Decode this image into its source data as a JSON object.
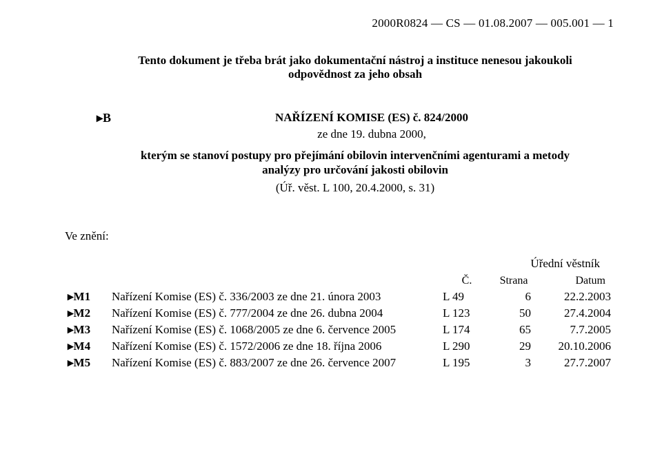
{
  "header": {
    "doc_ref": "2000R0824 — CS — 01.08.2007 — 005.001 — 1"
  },
  "disclaimer": "Tento dokument je třeba brát jako dokumentační nástroj a instituce nenesou jakoukoli odpovědnost za jeho obsah",
  "marker_b": "▸B",
  "regulation": {
    "title": "NAŘÍZENÍ KOMISE (ES) č. 824/2000",
    "date": "ze dne 19. dubna 2000,",
    "description": "kterým se stanoví postupy pro přejímání obilovin intervenčními agenturami a metody analýzy pro určování jakosti obilovin",
    "oj_ref": "(Úř. věst. L 100, 20.4.2000, s. 31)"
  },
  "amendments": {
    "label": "Ve znění:",
    "journal_header": "Úřední věstník",
    "col_c": "Č.",
    "col_page": "Strana",
    "col_date": "Datum",
    "rows": [
      {
        "marker": "▸M1",
        "text": "Nařízení Komise (ES) č. 336/2003 ze dne 21. února 2003",
        "l": "L 49",
        "page": "6",
        "date": "22.2.2003"
      },
      {
        "marker": "▸M2",
        "text": "Nařízení Komise (ES) č. 777/2004 ze dne 26. dubna 2004",
        "l": "L 123",
        "page": "50",
        "date": "27.4.2004"
      },
      {
        "marker": "▸M3",
        "text": "Nařízení Komise (ES) č. 1068/2005 ze dne 6. července 2005",
        "l": "L 174",
        "page": "65",
        "date": "7.7.2005"
      },
      {
        "marker": "▸M4",
        "text": "Nařízení Komise (ES) č. 1572/2006 ze dne 18. října 2006",
        "l": "L 290",
        "page": "29",
        "date": "20.10.2006"
      },
      {
        "marker": "▸M5",
        "text": "Nařízení Komise (ES) č. 883/2007 ze dne 26. července 2007",
        "l": "L 195",
        "page": "3",
        "date": "27.7.2007"
      }
    ]
  },
  "colors": {
    "text": "#000000",
    "background": "#ffffff"
  },
  "typography": {
    "body_fontsize_pt": 13,
    "bold_weight": 700,
    "font_family": "Times New Roman"
  }
}
